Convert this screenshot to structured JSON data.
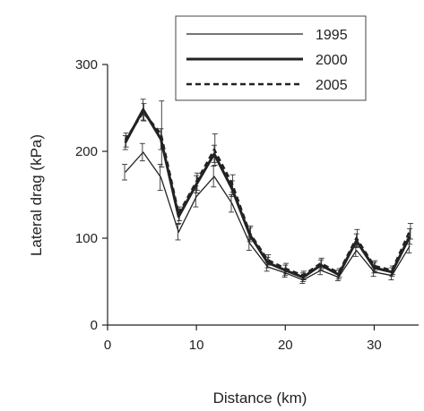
{
  "chart_data": {
    "type": "line",
    "title": "",
    "xlabel": "Distance (km)",
    "ylabel": "Lateral drag (kPa)",
    "xlim": [
      0,
      35
    ],
    "ylim": [
      0,
      300
    ],
    "x_ticks": [
      0,
      10,
      20,
      30
    ],
    "y_ticks": [
      0,
      100,
      200,
      300
    ],
    "grid": false,
    "legend_position": "top-right",
    "x": [
      2,
      4,
      6,
      8,
      10,
      12,
      14,
      16,
      18,
      20,
      22,
      24,
      26,
      28,
      30,
      32,
      34
    ],
    "series": [
      {
        "name": "1995",
        "style": "thin-solid",
        "values": [
          176,
          199,
          170,
          107,
          148,
          171,
          140,
          94,
          67,
          60,
          52,
          63,
          55,
          86,
          61,
          57,
          91
        ],
        "errors": [
          9,
          10,
          15,
          9,
          12,
          12,
          10,
          8,
          5,
          5,
          4,
          5,
          4,
          7,
          5,
          5,
          8
        ]
      },
      {
        "name": "2000",
        "style": "thick-solid",
        "values": [
          210,
          248,
          214,
          125,
          162,
          197,
          157,
          104,
          72,
          63,
          55,
          69,
          58,
          97,
          66,
          61,
          102
        ],
        "errors": [
          8,
          12,
          12,
          8,
          10,
          10,
          9,
          8,
          6,
          6,
          5,
          6,
          5,
          8,
          6,
          5,
          9
        ]
      },
      {
        "name": "2005",
        "style": "dashed",
        "values": [
          213,
          245,
          220,
          128,
          165,
          202,
          163,
          106,
          75,
          65,
          57,
          71,
          60,
          100,
          68,
          63,
          108
        ],
        "errors": [
          8,
          10,
          38,
          8,
          10,
          18,
          10,
          8,
          6,
          6,
          5,
          6,
          5,
          10,
          6,
          5,
          9
        ]
      }
    ],
    "colors": {
      "line": "#222222",
      "axis": "#222222"
    }
  }
}
